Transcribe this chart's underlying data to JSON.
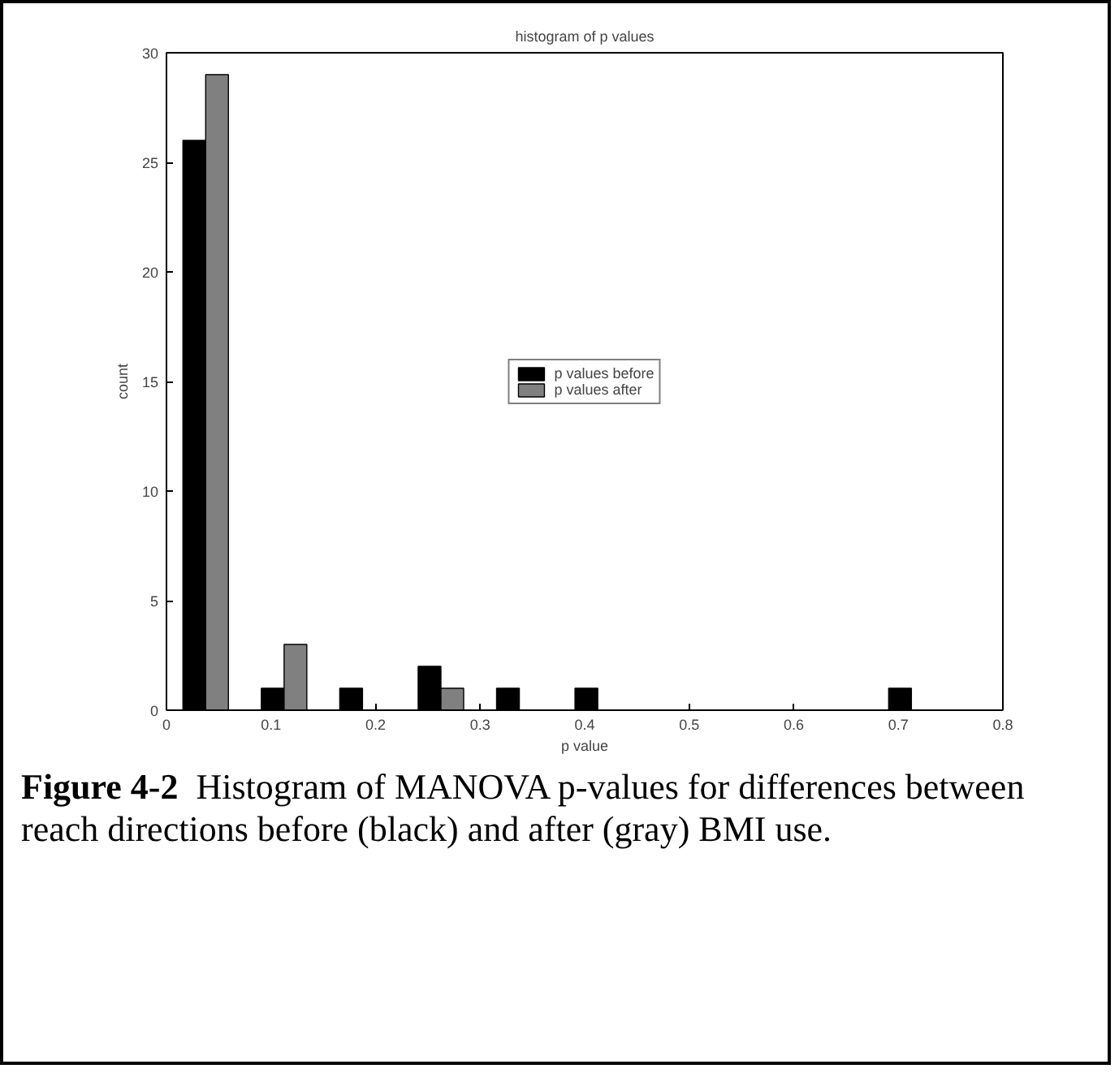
{
  "chart_data": {
    "type": "histogram",
    "title": "histogram of p values",
    "xlabel": "p value",
    "ylabel": "count",
    "bins": [
      0,
      0.075,
      0.15,
      0.225,
      0.3,
      0.375,
      0.45,
      0.525,
      0.6,
      0.675,
      0.75
    ],
    "series": [
      {
        "name": "p values before",
        "color": "#000000",
        "values": [
          26,
          1,
          1,
          2,
          1,
          1,
          0,
          0,
          0,
          1
        ]
      },
      {
        "name": "p values after",
        "color": "#808080",
        "values": [
          29,
          3,
          0,
          1,
          0,
          0,
          0,
          0,
          0,
          0
        ]
      }
    ],
    "xlim": [
      0,
      0.8
    ],
    "ylim": [
      0,
      30
    ],
    "xticks": [
      0,
      0.1,
      0.2,
      0.3,
      0.4,
      0.5,
      0.6,
      0.7,
      0.8
    ],
    "yticks": [
      0,
      5,
      10,
      15,
      20,
      25,
      30
    ],
    "grid": false,
    "legend": "center",
    "annotations": [
      "Figure 4-2",
      "Histogram of MANOVA p-values for differences between reach directions before (black) and after (gray) BMI use."
    ]
  }
}
